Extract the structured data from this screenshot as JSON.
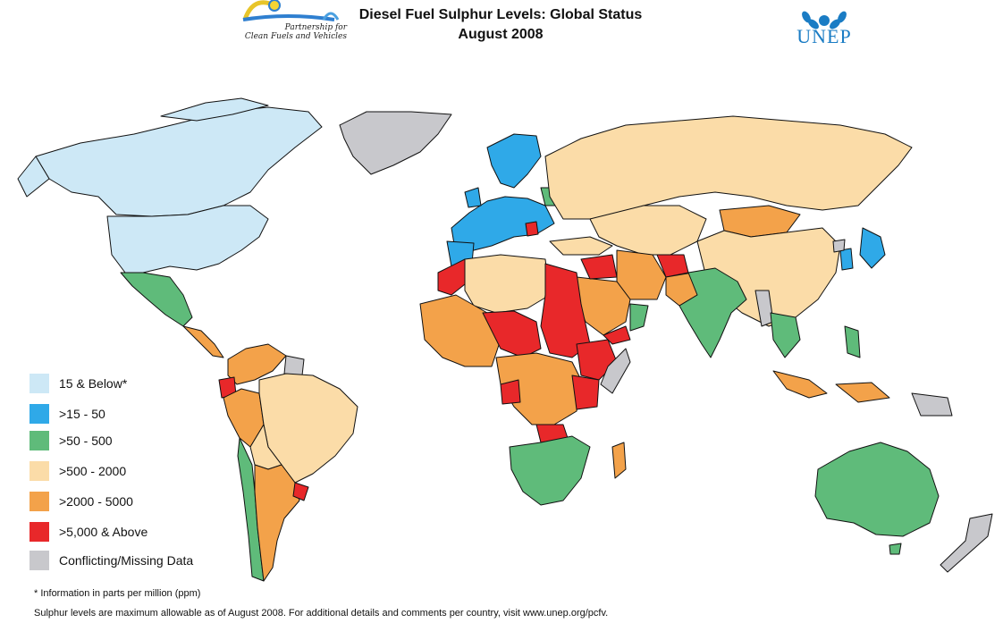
{
  "header": {
    "title_line1": "Diesel Fuel Sulphur Levels: Global Status",
    "title_line2": "August 2008",
    "pcfv_logo_text_line1": "Partnership for",
    "pcfv_logo_text_line2": "Clean Fuels and Vehicles",
    "unep_logo_text": "UNEP"
  },
  "legend": {
    "items": [
      {
        "label": "15 & Below*",
        "color": "#cde8f6"
      },
      {
        "label": ">15 - 50",
        "color": "#2fa9e8"
      },
      {
        "label": ">50 - 500",
        "color": "#5fbb7a"
      },
      {
        "label": ">500 - 2000",
        "color": "#fbdca8"
      },
      {
        "label": ">2000 - 5000",
        "color": "#f3a24a"
      },
      {
        "label": ">5,000 & Above",
        "color": "#e8282a"
      },
      {
        "label": "Conflicting/Missing Data",
        "color": "#c8c8cc"
      }
    ]
  },
  "footer": {
    "note": "* Information in parts per million (ppm)",
    "source": "Sulphur levels are maximum allowable as of August 2008.  For additional details and comments per country, visit www.unep.org/pcfv."
  },
  "colors": {
    "ocean": "#ffffff",
    "border": "#111111"
  }
}
